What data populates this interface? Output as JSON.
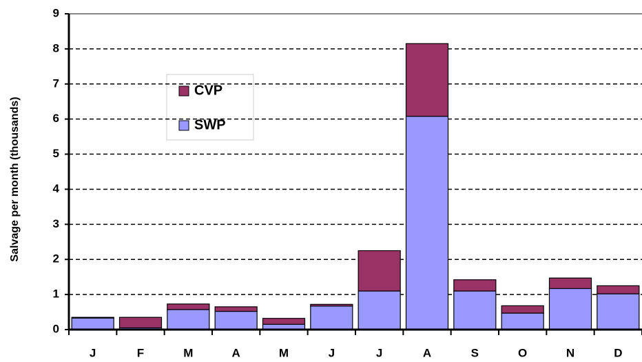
{
  "chart_data": {
    "type": "stacked-bar",
    "y_label": "Salvage per month (thousands)",
    "categories": [
      "J",
      "F",
      "M",
      "A",
      "M",
      "J",
      "J",
      "A",
      "S",
      "O",
      "N",
      "D"
    ],
    "series": [
      {
        "name": "CVP",
        "color": "#993366",
        "values": [
          0.02,
          0.3,
          0.16,
          0.13,
          0.17,
          0.05,
          1.15,
          2.07,
          0.32,
          0.21,
          0.3,
          0.23
        ]
      },
      {
        "name": "SWP",
        "color": "#9999ff",
        "values": [
          0.33,
          0.05,
          0.57,
          0.52,
          0.15,
          0.67,
          1.1,
          6.08,
          1.1,
          0.47,
          1.17,
          1.02
        ]
      }
    ],
    "stack_order": [
      "SWP",
      "CVP"
    ],
    "ylim": [
      0,
      9
    ],
    "yticks": [
      0,
      1,
      2,
      3,
      4,
      5,
      6,
      7,
      8,
      9
    ],
    "grid": true
  }
}
